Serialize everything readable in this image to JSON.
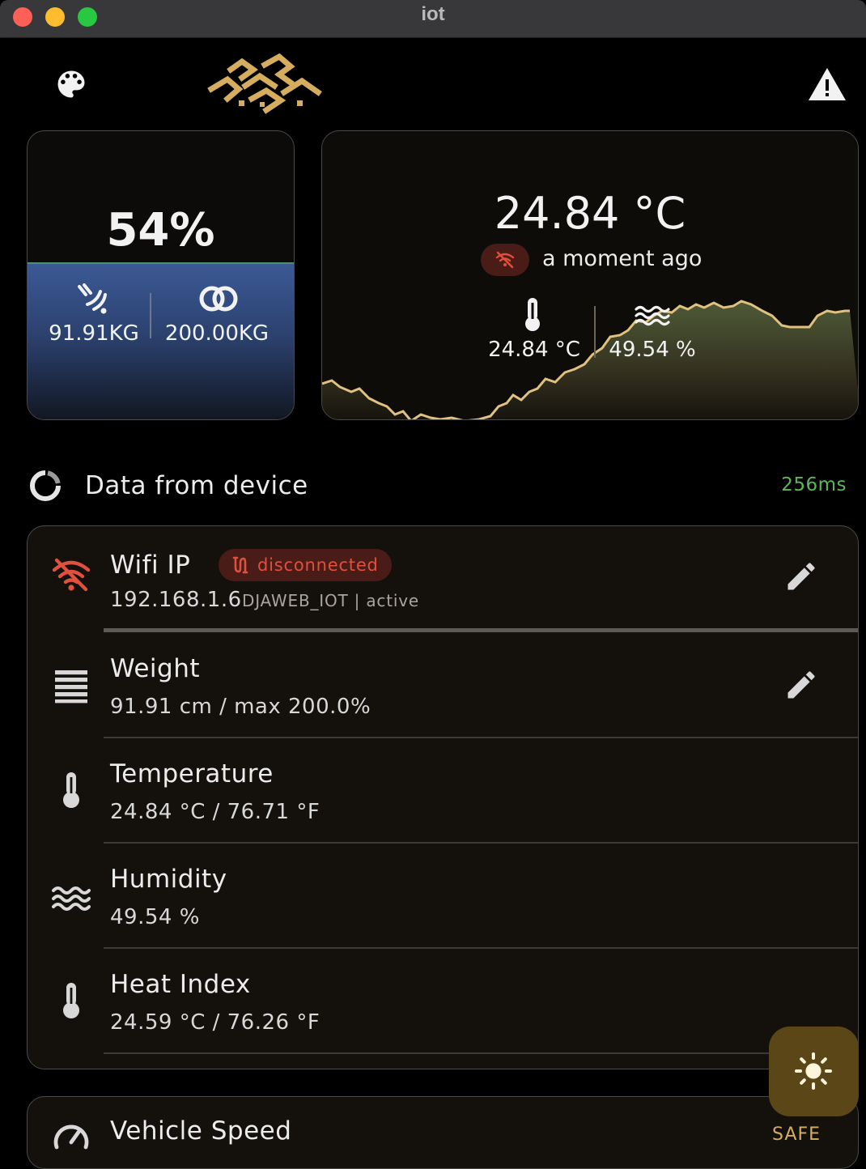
{
  "window": {
    "title": "iot"
  },
  "header": {
    "palette_icon": "palette-icon",
    "logo_icon": "calligraphy-logo",
    "alert_icon": "warning-icon"
  },
  "level_card": {
    "percent": "54%",
    "fill_fraction": 0.54,
    "current_weight": "91.91KG",
    "max_weight": "200.00KG",
    "left_icon": "scale-signal-icon",
    "right_icon": "rings-icon"
  },
  "climate_card": {
    "temperature": "24.84 °C",
    "status_icon": "wifi-off-icon",
    "last_update": "a moment ago",
    "temp_value": "24.84 °C",
    "humidity_value": "49.54 %"
  },
  "section": {
    "title": "Data from device",
    "latency": "256ms",
    "latency_color": "#5fb65a"
  },
  "device_list": {
    "wifi": {
      "title": "Wifi IP",
      "badge": "disconnected",
      "ip": "192.168.1.6",
      "network": "DJAWEB_IOT | active"
    },
    "weight": {
      "title": "Weight",
      "value": "91.91 cm / max 200.0%"
    },
    "temperature": {
      "title": "Temperature",
      "value": "24.84 °C / 76.71 °F"
    },
    "humidity": {
      "title": "Humidity",
      "value": "49.54 %"
    },
    "heat_index": {
      "title": "Heat Index",
      "value": "24.59 °C / 76.26 °F"
    }
  },
  "speed_card": {
    "title": "Vehicle Speed",
    "status": "SAFE"
  },
  "fab": {
    "icon": "sun-icon"
  },
  "colors": {
    "accent_gold": "#d6ad5f",
    "danger": "#e0503f",
    "fab_bg": "#5a4616",
    "chart_line": "#e1c17f"
  }
}
